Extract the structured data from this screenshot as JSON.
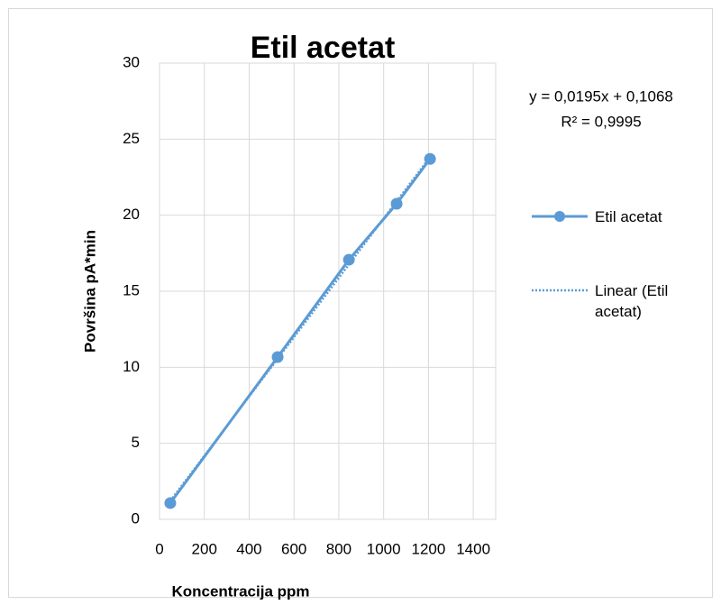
{
  "chart_data": {
    "type": "scatter",
    "title": "Etil acetat",
    "x_label": "Koncentracija ppm",
    "y_label": "Površina pA*min",
    "series": [
      {
        "name": "Etil acetat",
        "color": "#5b9bd5",
        "x": [
          48,
          527,
          845,
          1058,
          1207
        ],
        "values": [
          1.07,
          10.67,
          17.07,
          20.75,
          23.7
        ]
      }
    ],
    "trendline": {
      "name": "Linear (Etil acetat)",
      "equation": "y = 0,0195x + 0,1068",
      "r_squared": "R² = 0,9995"
    },
    "xlim": [
      0,
      1500
    ],
    "xticks": [
      0,
      200,
      400,
      600,
      800,
      1000,
      1200,
      1400
    ],
    "ylim": [
      0,
      30
    ],
    "yticks": [
      0,
      5,
      10,
      15,
      20,
      25,
      30
    ],
    "grid": true
  }
}
